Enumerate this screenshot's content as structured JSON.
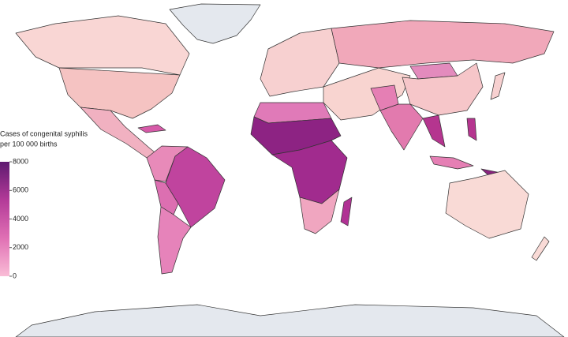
{
  "map": {
    "legend": {
      "title": [
        "Cases of congenital syphilis",
        "per 100 000 births"
      ],
      "lim": [
        0,
        8000
      ],
      "ticks": [
        0,
        2000,
        4000,
        6000,
        8000
      ],
      "colors": [
        "#f9bcd6",
        "#e070b4",
        "#b33a98",
        "#5e1a70"
      ]
    }
  }
}
